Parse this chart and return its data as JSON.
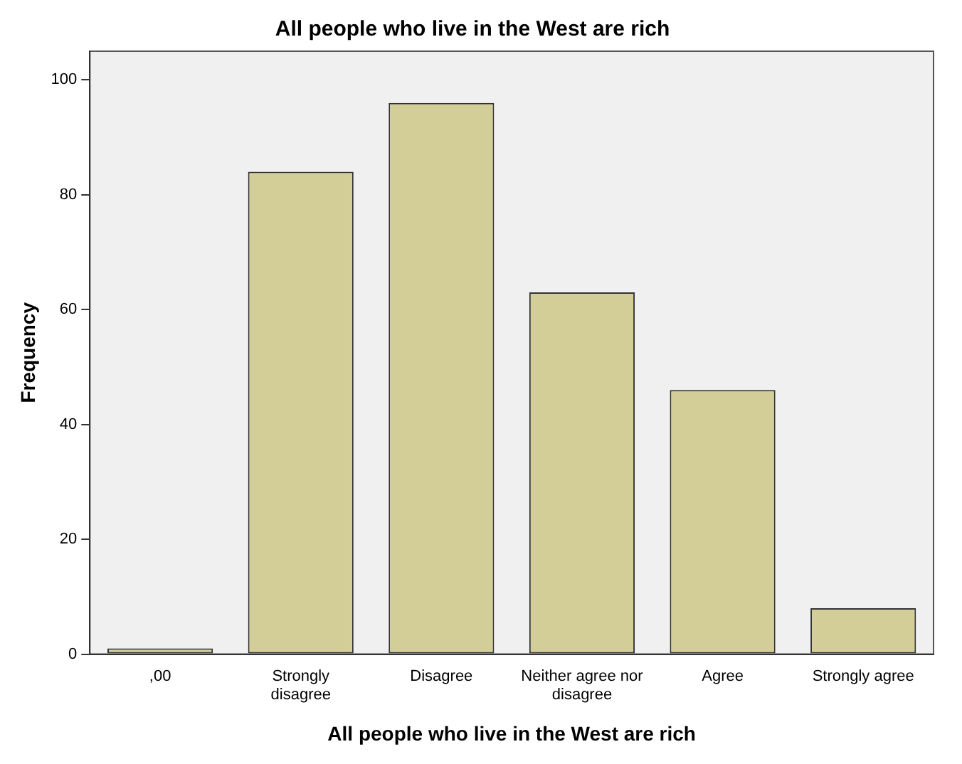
{
  "chart_data": {
    "type": "bar",
    "title": "All people who live in the West are rich",
    "xlabel": "All people who live in the West are rich",
    "ylabel": "Frequency",
    "categories": [
      ",00",
      "Strongly disagree",
      "Disagree",
      "Neither agree nor disagree",
      "Agree",
      "Strongly agree"
    ],
    "values": [
      1,
      84,
      96,
      63,
      46,
      8
    ],
    "color": "#d3ce97",
    "ylim": [
      0,
      105
    ],
    "yticks": [
      0,
      20,
      40,
      60,
      80,
      100
    ],
    "grid": false,
    "legend": false
  }
}
